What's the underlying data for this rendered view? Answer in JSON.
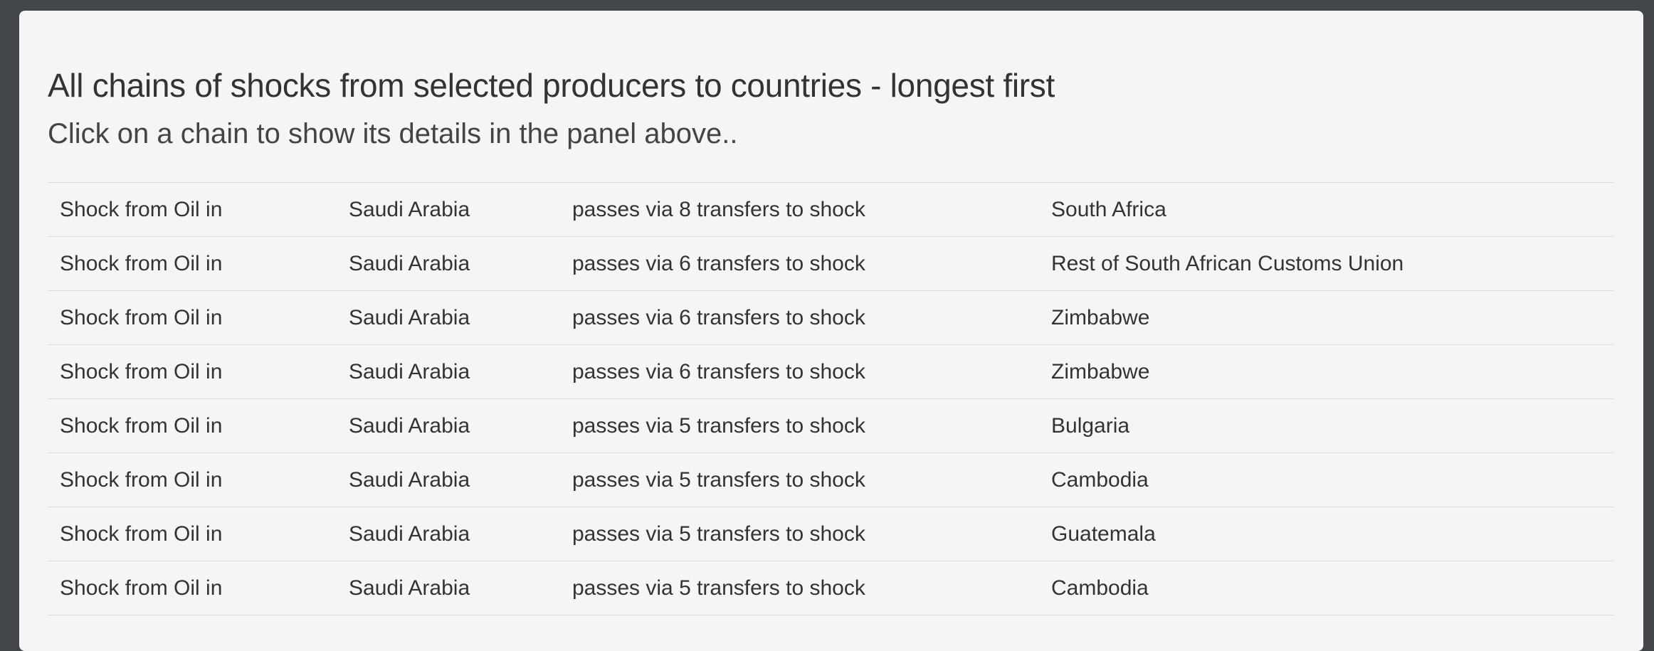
{
  "header": {
    "title": "All chains of shocks from selected producers to countries - longest first",
    "subtitle": "Click on a chain to show its details in the panel above.."
  },
  "chains": [
    {
      "source": "Shock from Oil in",
      "producer": "Saudi Arabia",
      "transfers": "passes via 8 transfers to shock",
      "country": "South Africa"
    },
    {
      "source": "Shock from Oil in",
      "producer": "Saudi Arabia",
      "transfers": "passes via 6 transfers to shock",
      "country": "Rest of South African Customs Union"
    },
    {
      "source": "Shock from Oil in",
      "producer": "Saudi Arabia",
      "transfers": "passes via 6 transfers to shock",
      "country": "Zimbabwe"
    },
    {
      "source": "Shock from Oil in",
      "producer": "Saudi Arabia",
      "transfers": "passes via 6 transfers to shock",
      "country": "Zimbabwe"
    },
    {
      "source": "Shock from Oil in",
      "producer": "Saudi Arabia",
      "transfers": "passes via 5 transfers to shock",
      "country": "Bulgaria"
    },
    {
      "source": "Shock from Oil in",
      "producer": "Saudi Arabia",
      "transfers": "passes via 5 transfers to shock",
      "country": "Cambodia"
    },
    {
      "source": "Shock from Oil in",
      "producer": "Saudi Arabia",
      "transfers": "passes via 5 transfers to shock",
      "country": "Guatemala"
    },
    {
      "source": "Shock from Oil in",
      "producer": "Saudi Arabia",
      "transfers": "passes via 5 transfers to shock",
      "country": "Cambodia"
    }
  ]
}
